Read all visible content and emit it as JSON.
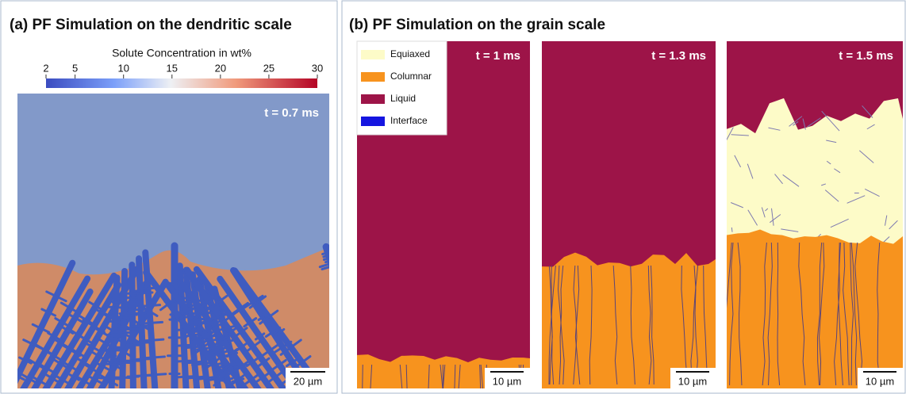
{
  "panel_a": {
    "title": "(a) PF Simulation on the dendritic scale",
    "colorbar": {
      "label": "Solute Concentration in wt%",
      "range": [
        2,
        30
      ],
      "ticks": [
        2,
        5,
        10,
        15,
        20,
        25,
        30
      ]
    },
    "time": "t = 0.7 ms",
    "scale_bar": "20 µm"
  },
  "panel_b": {
    "title": "(b) PF Simulation on the grain scale",
    "legend": [
      {
        "label": "Equiaxed",
        "color": "#fdfbc8"
      },
      {
        "label": "Columnar",
        "color": "#f7931e"
      },
      {
        "label": "Liquid",
        "color": "#9d1448"
      },
      {
        "label": "Interface",
        "color": "#1515e0"
      }
    ],
    "frames": [
      {
        "time": "t = 1 ms",
        "scale_bar": "10 µm"
      },
      {
        "time": "t = 1.3 ms",
        "scale_bar": "10 µm"
      },
      {
        "time": "t = 1.5 ms",
        "scale_bar": "10 µm"
      }
    ]
  }
}
